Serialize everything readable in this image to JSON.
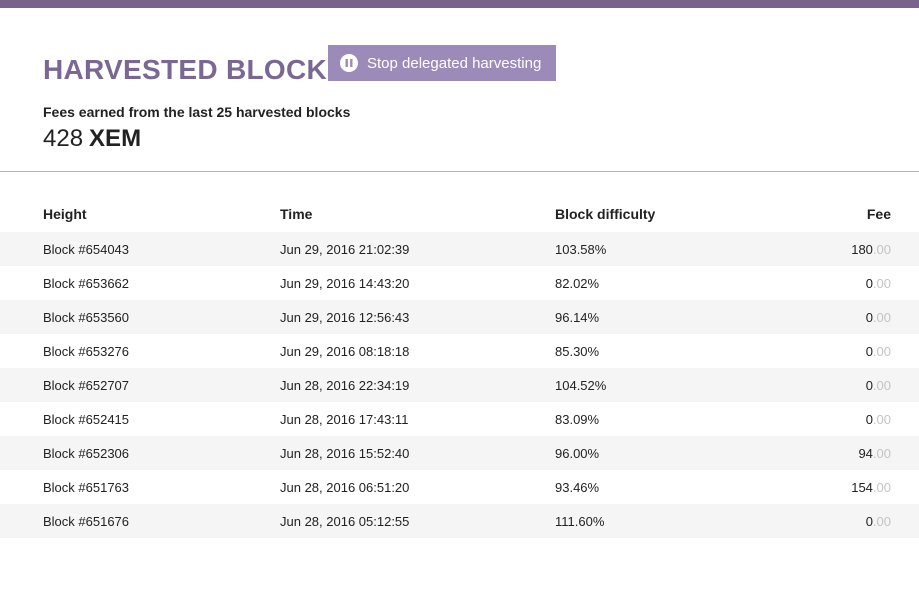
{
  "colors": {
    "top_bar": "#76648c",
    "title": "#7a6894",
    "button_bg": "#9c8ab8",
    "row_shade": "#f5f5f5",
    "fee_decimal": "#c4c4c4"
  },
  "header": {
    "title": "HARVESTED BLOCKS",
    "stop_button": {
      "icon": "pause-icon",
      "label": "Stop delegated harvesting"
    },
    "fees_label": "Fees earned from the last 25 harvested blocks",
    "fees_amount": "428",
    "fees_unit": "XEM"
  },
  "table": {
    "columns": [
      "Height",
      "Time",
      "Block difficulty",
      "Fee"
    ],
    "rows": [
      {
        "height": "Block #654043",
        "time": "Jun 29, 2016 21:02:39",
        "difficulty": "103.58%",
        "fee_int": "180",
        "fee_dec": ".00"
      },
      {
        "height": "Block #653662",
        "time": "Jun 29, 2016 14:43:20",
        "difficulty": "82.02%",
        "fee_int": "0",
        "fee_dec": ".00"
      },
      {
        "height": "Block #653560",
        "time": "Jun 29, 2016 12:56:43",
        "difficulty": "96.14%",
        "fee_int": "0",
        "fee_dec": ".00"
      },
      {
        "height": "Block #653276",
        "time": "Jun 29, 2016 08:18:18",
        "difficulty": "85.30%",
        "fee_int": "0",
        "fee_dec": ".00"
      },
      {
        "height": "Block #652707",
        "time": "Jun 28, 2016 22:34:19",
        "difficulty": "104.52%",
        "fee_int": "0",
        "fee_dec": ".00"
      },
      {
        "height": "Block #652415",
        "time": "Jun 28, 2016 17:43:11",
        "difficulty": "83.09%",
        "fee_int": "0",
        "fee_dec": ".00"
      },
      {
        "height": "Block #652306",
        "time": "Jun 28, 2016 15:52:40",
        "difficulty": "96.00%",
        "fee_int": "94",
        "fee_dec": ".00"
      },
      {
        "height": "Block #651763",
        "time": "Jun 28, 2016 06:51:20",
        "difficulty": "93.46%",
        "fee_int": "154",
        "fee_dec": ".00"
      },
      {
        "height": "Block #651676",
        "time": "Jun 28, 2016 05:12:55",
        "difficulty": "111.60%",
        "fee_int": "0",
        "fee_dec": ".00"
      }
    ]
  }
}
